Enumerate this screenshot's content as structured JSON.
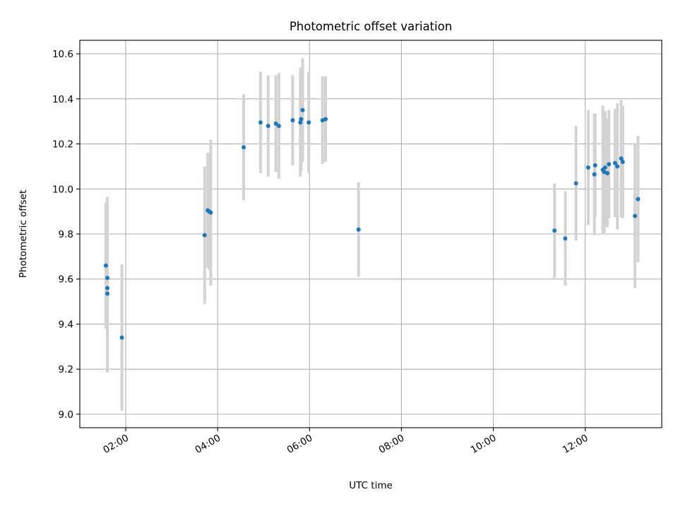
{
  "chart_data": {
    "type": "scatter",
    "title": "Photometric offset variation",
    "xlabel": "UTC time",
    "ylabel": "Photometric offset",
    "xlim": [
      "01:00",
      "13:40"
    ],
    "ylim": [
      8.94,
      10.66
    ],
    "xticks": [
      "02:00",
      "04:00",
      "06:00",
      "08:00",
      "10:00",
      "12:00"
    ],
    "yticks": [
      "9.0",
      "9.2",
      "9.4",
      "9.6",
      "9.8",
      "10.0",
      "10.2",
      "10.4",
      "10.6"
    ],
    "grid": true,
    "marker_color": "#1f77b4",
    "errorbar_color": "#d3d3d3",
    "points": [
      {
        "x": "01:34",
        "y": 9.66,
        "yerr": 0.28
      },
      {
        "x": "01:36",
        "y": 9.605,
        "yerr": 0.36
      },
      {
        "x": "01:36",
        "y": 9.56,
        "yerr": 0.36
      },
      {
        "x": "01:36",
        "y": 9.535,
        "yerr": 0.35
      },
      {
        "x": "01:55",
        "y": 9.34,
        "yerr": 0.325
      },
      {
        "x": "03:43",
        "y": 9.795,
        "yerr": 0.305
      },
      {
        "x": "03:47",
        "y": 9.905,
        "yerr": 0.255
      },
      {
        "x": "03:49",
        "y": 9.9,
        "yerr": 0.26
      },
      {
        "x": "03:51",
        "y": 9.895,
        "yerr": 0.325
      },
      {
        "x": "04:34",
        "y": 10.185,
        "yerr": 0.235
      },
      {
        "x": "04:56",
        "y": 10.295,
        "yerr": 0.225
      },
      {
        "x": "05:06",
        "y": 10.28,
        "yerr": 0.225
      },
      {
        "x": "05:16",
        "y": 10.29,
        "yerr": 0.215
      },
      {
        "x": "05:20",
        "y": 10.28,
        "yerr": 0.235
      },
      {
        "x": "05:38",
        "y": 10.305,
        "yerr": 0.2
      },
      {
        "x": "05:48",
        "y": 10.295,
        "yerr": 0.24
      },
      {
        "x": "05:49",
        "y": 10.31,
        "yerr": 0.23
      },
      {
        "x": "05:51",
        "y": 10.35,
        "yerr": 0.23
      },
      {
        "x": "05:59",
        "y": 10.295,
        "yerr": 0.225
      },
      {
        "x": "06:17",
        "y": 10.305,
        "yerr": 0.195
      },
      {
        "x": "06:21",
        "y": 10.31,
        "yerr": 0.19
      },
      {
        "x": "07:04",
        "y": 9.82,
        "yerr": 0.21
      },
      {
        "x": "11:20",
        "y": 9.815,
        "yerr": 0.21
      },
      {
        "x": "11:34",
        "y": 9.78,
        "yerr": 0.21
      },
      {
        "x": "11:48",
        "y": 10.025,
        "yerr": 0.255
      },
      {
        "x": "12:04",
        "y": 10.095,
        "yerr": 0.255
      },
      {
        "x": "12:12",
        "y": 10.065,
        "yerr": 0.27
      },
      {
        "x": "12:13",
        "y": 10.105,
        "yerr": 0.23
      },
      {
        "x": "12:23",
        "y": 10.085,
        "yerr": 0.285
      },
      {
        "x": "12:25",
        "y": 10.075,
        "yerr": 0.27
      },
      {
        "x": "12:26",
        "y": 10.095,
        "yerr": 0.25
      },
      {
        "x": "12:29",
        "y": 10.07,
        "yerr": 0.24
      },
      {
        "x": "12:31",
        "y": 10.11,
        "yerr": 0.24
      },
      {
        "x": "12:39",
        "y": 10.115,
        "yerr": 0.24
      },
      {
        "x": "12:42",
        "y": 10.1,
        "yerr": 0.28
      },
      {
        "x": "12:47",
        "y": 10.135,
        "yerr": 0.26
      },
      {
        "x": "12:49",
        "y": 10.12,
        "yerr": 0.25
      },
      {
        "x": "13:05",
        "y": 9.88,
        "yerr": 0.32
      },
      {
        "x": "13:09",
        "y": 9.955,
        "yerr": 0.28
      }
    ]
  }
}
